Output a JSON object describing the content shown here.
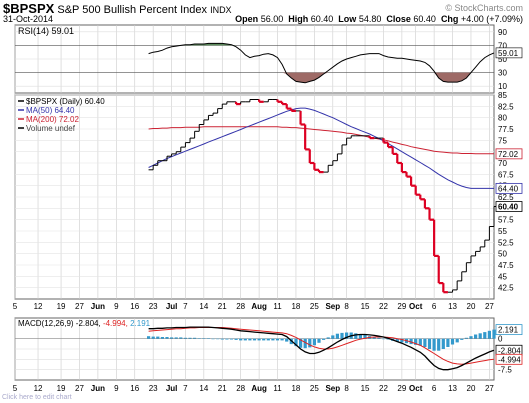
{
  "header": {
    "symbol": "$BPSPX",
    "name": "S&P 500 Bullish Percent Index",
    "exchange": "INDX",
    "date": "31-Oct-2014",
    "ohlc": [
      {
        "label": "Open",
        "value": "56.00"
      },
      {
        "label": "High",
        "value": "60.40"
      },
      {
        "label": "Low",
        "value": "54.80"
      },
      {
        "label": "Close",
        "value": "60.40"
      },
      {
        "label": "Chg",
        "value": "+4.00 (+7.09%)"
      }
    ],
    "watermark": "© StockCharts.com"
  },
  "footer_text": "Click here to edit chart",
  "colors": {
    "price": "#000000",
    "ma50": "#3333aa",
    "ma200": "#cc2233",
    "down": "#dd0022",
    "rsi_pos": "#5a8a5a",
    "rsi_neg": "#9e6a66",
    "macd_hist": "#3399cc",
    "macd": "#000000",
    "signal": "#dd2222"
  },
  "chart_data": [
    {
      "type": "line",
      "panel": "RSI",
      "legend": "RSI(14) 59.01",
      "ylim": [
        0,
        100
      ],
      "y_ticks": [
        10,
        30,
        50,
        70,
        90
      ],
      "reference_lines": [
        30,
        70
      ],
      "last_value": "59.01",
      "values": [
        58,
        60,
        61,
        63,
        66,
        68,
        69,
        70,
        71,
        71,
        72,
        72,
        72,
        73,
        73,
        73,
        73,
        72,
        71,
        68,
        63,
        56,
        52,
        54,
        55,
        57,
        58,
        56,
        52,
        42,
        28,
        22,
        17,
        16,
        15,
        17,
        19,
        23,
        28,
        33,
        38,
        43,
        47,
        50,
        52,
        54,
        56,
        57,
        58,
        58,
        58,
        55,
        53,
        52,
        51,
        51,
        50,
        49,
        48,
        47,
        45,
        40,
        32,
        22,
        17,
        16,
        16,
        16,
        18,
        22,
        30,
        38,
        46,
        52,
        56,
        59
      ]
    },
    {
      "type": "line",
      "panel": "Price",
      "legend": [
        {
          "name": "$BPSPX (Daily) 60.40"
        },
        {
          "name": "MA(50) 64.40"
        },
        {
          "name": "MA(200) 72.02"
        },
        {
          "name": "Volume undef"
        }
      ],
      "ylim": [
        40,
        85
      ],
      "y_ticks": [
        42.5,
        45,
        47.5,
        50,
        52.5,
        55,
        57.5,
        60,
        62.5,
        65,
        67.5,
        70,
        72.5,
        75,
        77.5,
        80,
        82.5,
        85
      ],
      "value_tags": [
        "72.02",
        "64.40",
        "60.40"
      ],
      "series": [
        {
          "name": "$BPSPX",
          "values": [
            68.5,
            69.5,
            70.5,
            70.5,
            71.5,
            72,
            72.5,
            73.5,
            74.5,
            75.5,
            77,
            78.5,
            79.5,
            80.5,
            81,
            82,
            83,
            83.5,
            83.5,
            83,
            83.5,
            83.5,
            84,
            84,
            83.5,
            83.5,
            84,
            84,
            83.5,
            83,
            82,
            81.5,
            81.5,
            78.5,
            73,
            70,
            68.5,
            68,
            68,
            69.5,
            70.5,
            72,
            74,
            75.5,
            76,
            76,
            76,
            76,
            75.5,
            75.5,
            75.5,
            74.5,
            73.5,
            72,
            70,
            68,
            67,
            65,
            63,
            62,
            60,
            57.5,
            49.5,
            43.5,
            41.5,
            41.5,
            42,
            44,
            46,
            48,
            49.5,
            50.5,
            51.5,
            53,
            56,
            60.4
          ]
        },
        {
          "name": "MA(50)",
          "values": [
            69,
            69.5,
            70,
            70.5,
            71,
            71.4,
            71.8,
            72.2,
            72.6,
            73,
            73.4,
            73.8,
            74.2,
            74.6,
            75,
            75.4,
            75.8,
            76.2,
            76.6,
            77,
            77.4,
            77.8,
            78.2,
            78.6,
            79,
            79.4,
            79.8,
            80.2,
            80.6,
            81,
            81.4,
            81.7,
            82,
            82.1,
            82.1,
            81.9,
            81.6,
            81.2,
            80.8,
            80.4,
            80,
            79.5,
            79,
            78.5,
            78,
            77.6,
            77.2,
            76.8,
            76.4,
            75.9,
            75.4,
            74.9,
            74.3,
            73.7,
            73.1,
            72.5,
            71.9,
            71.3,
            70.7,
            70.1,
            69.5,
            68.9,
            68.2,
            67.5,
            66.9,
            66.3,
            65.8,
            65.3,
            64.9,
            64.6,
            64.4,
            64.4,
            64.4,
            64.4,
            64.4,
            64.4
          ]
        },
        {
          "name": "MA(200)",
          "values": [
            77.5,
            77.6,
            77.6,
            77.7,
            77.7,
            77.8,
            77.8,
            77.8,
            77.9,
            77.9,
            77.9,
            77.9,
            78,
            78,
            78,
            78,
            78,
            78,
            78,
            78,
            78,
            78,
            78,
            78,
            78,
            78,
            78,
            78,
            78,
            77.9,
            77.9,
            77.8,
            77.8,
            77.7,
            77.6,
            77.5,
            77.4,
            77.3,
            77.2,
            77.1,
            77,
            76.9,
            76.8,
            76.6,
            76.5,
            76.3,
            76.1,
            75.9,
            75.7,
            75.5,
            75.3,
            75.1,
            74.9,
            74.6,
            74.4,
            74.1,
            73.9,
            73.6,
            73.4,
            73.2,
            73,
            72.8,
            72.6,
            72.5,
            72.4,
            72.3,
            72.2,
            72.2,
            72.1,
            72.1,
            72.1,
            72.05,
            72.02,
            72.02,
            72.02,
            72.02
          ]
        }
      ]
    },
    {
      "type": "bar",
      "panel": "MACD",
      "legend": [
        {
          "name": "MACD(12,26,9)",
          "value": "-2.804"
        },
        {
          "name": "",
          "value": "-4.994"
        },
        {
          "name": "",
          "value": "2.191"
        }
      ],
      "ylim": [
        -10,
        5
      ],
      "y_ticks": [
        0,
        -2.5,
        -5,
        -7.5
      ],
      "value_tags": [
        "2.191",
        "-2.804",
        "-4.994"
      ],
      "series": [
        {
          "name": "MACD",
          "values": [
            2.4,
            2.4,
            2.5,
            2.5,
            2.6,
            2.6,
            2.7,
            2.7,
            2.7,
            2.8,
            2.8,
            2.8,
            2.8,
            2.8,
            2.7,
            2.6,
            2.5,
            2.4,
            2.3,
            2.1,
            1.9,
            1.8,
            1.7,
            1.6,
            1.5,
            1.4,
            1.3,
            1.2,
            1.1,
            1,
            0.5,
            -0.5,
            -1.5,
            -2.5,
            -3.2,
            -3.6,
            -3.6,
            -3.3,
            -2.8,
            -2.2,
            -1.5,
            -0.8,
            -0.2,
            0.3,
            0.7,
            0.9,
            1,
            1,
            0.9,
            0.8,
            0.6,
            0.4,
            0.1,
            -0.3,
            -0.7,
            -1.1,
            -1.6,
            -2.1,
            -2.7,
            -3.3,
            -4.2,
            -5.4,
            -6.5,
            -7.2,
            -7.5,
            -7.5,
            -7.3,
            -7,
            -6.5,
            -5.9,
            -5.3,
            -4.7,
            -4.2,
            -3.7,
            -3.2,
            -2.804
          ]
        },
        {
          "name": "Signal",
          "values": [
            1.8,
            1.9,
            2,
            2.1,
            2.2,
            2.3,
            2.4,
            2.4,
            2.5,
            2.6,
            2.6,
            2.7,
            2.7,
            2.7,
            2.7,
            2.7,
            2.7,
            2.6,
            2.5,
            2.4,
            2.3,
            2.2,
            2.1,
            2,
            1.9,
            1.8,
            1.7,
            1.6,
            1.5,
            1.4,
            1.2,
            0.8,
            0.3,
            -0.3,
            -0.9,
            -1.5,
            -2,
            -2.3,
            -2.5,
            -2.5,
            -2.3,
            -2,
            -1.6,
            -1.2,
            -0.8,
            -0.4,
            -0.1,
            0.1,
            0.3,
            0.4,
            0.4,
            0.4,
            0.3,
            0.2,
            0,
            -0.2,
            -0.5,
            -0.8,
            -1.2,
            -1.6,
            -2.2,
            -2.9,
            -3.6,
            -4.3,
            -5,
            -5.5,
            -5.9,
            -6.1,
            -6.2,
            -6.1,
            -5.9,
            -5.7,
            -5.5,
            -5.3,
            -5.1,
            -4.994
          ]
        }
      ]
    }
  ],
  "x_axis": {
    "labels": [
      {
        "i": 0,
        "text": "5",
        "bold": false
      },
      {
        "i": 5,
        "text": "12",
        "bold": false
      },
      {
        "i": 10,
        "text": "19",
        "bold": false
      },
      {
        "i": 14,
        "text": "27",
        "bold": false
      },
      {
        "i": 18,
        "text": "Jun",
        "bold": true
      },
      {
        "i": 22,
        "text": "9",
        "bold": false
      },
      {
        "i": 26,
        "text": "16",
        "bold": false
      },
      {
        "i": 30,
        "text": "23",
        "bold": false
      },
      {
        "i": 34,
        "text": "Jul",
        "bold": true
      },
      {
        "i": 37,
        "text": "7",
        "bold": false
      },
      {
        "i": 41,
        "text": "14",
        "bold": false
      },
      {
        "i": 45,
        "text": "21",
        "bold": false
      },
      {
        "i": 49,
        "text": "28",
        "bold": false
      },
      {
        "i": 53,
        "text": "Aug",
        "bold": true
      },
      {
        "i": 57,
        "text": "11",
        "bold": false
      },
      {
        "i": 61,
        "text": "18",
        "bold": false
      },
      {
        "i": 65,
        "text": "25",
        "bold": false
      },
      {
        "i": 69,
        "text": "Sep",
        "bold": true
      },
      {
        "i": 72,
        "text": "8",
        "bold": false
      },
      {
        "i": 76,
        "text": "15",
        "bold": false
      },
      {
        "i": 80,
        "text": "22",
        "bold": false
      },
      {
        "i": 84,
        "text": "29",
        "bold": false
      },
      {
        "i": 87,
        "text": "Oct",
        "bold": true
      },
      {
        "i": 91,
        "text": "6",
        "bold": false
      },
      {
        "i": 95,
        "text": "13",
        "bold": false
      },
      {
        "i": 99,
        "text": "20",
        "bold": false
      },
      {
        "i": 103,
        "text": "27",
        "bold": false
      }
    ]
  }
}
